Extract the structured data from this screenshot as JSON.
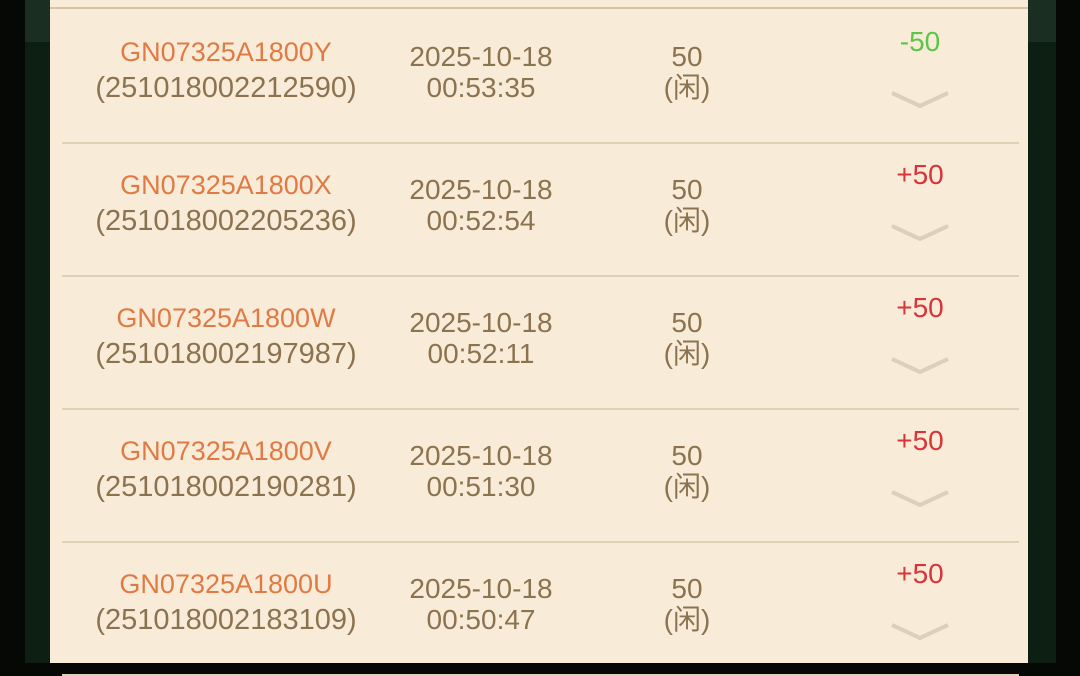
{
  "colors": {
    "positive": "#d8343a",
    "negative": "#5cc648",
    "code": "#e07a45",
    "text": "#8c7350"
  },
  "records": [
    {
      "code": "GN07325A1800Y",
      "serial": "(251018002212590)",
      "date": "2025-10-18",
      "time": "00:53:35",
      "amount": "50",
      "side": "(闲)",
      "result": "-50",
      "result_type": "negative"
    },
    {
      "code": "GN07325A1800X",
      "serial": "(251018002205236)",
      "date": "2025-10-18",
      "time": "00:52:54",
      "amount": "50",
      "side": "(闲)",
      "result": "+50",
      "result_type": "positive"
    },
    {
      "code": "GN07325A1800W",
      "serial": "(251018002197987)",
      "date": "2025-10-18",
      "time": "00:52:11",
      "amount": "50",
      "side": "(闲)",
      "result": "+50",
      "result_type": "positive"
    },
    {
      "code": "GN07325A1800V",
      "serial": "(251018002190281)",
      "date": "2025-10-18",
      "time": "00:51:30",
      "amount": "50",
      "side": "(闲)",
      "result": "+50",
      "result_type": "positive"
    },
    {
      "code": "GN07325A1800U",
      "serial": "(251018002183109)",
      "date": "2025-10-18",
      "time": "00:50:47",
      "amount": "50",
      "side": "(闲)",
      "result": "+50",
      "result_type": "positive"
    }
  ]
}
